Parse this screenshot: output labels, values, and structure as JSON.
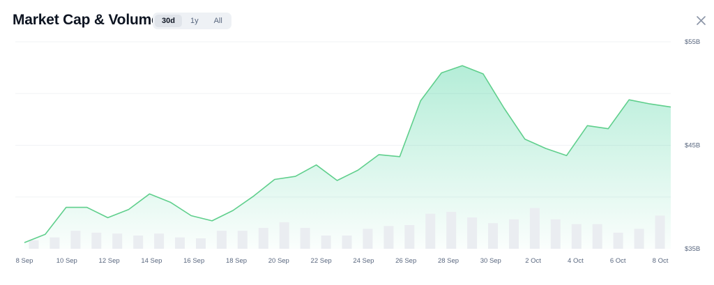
{
  "header": {
    "title": "Market Cap & Volume",
    "tabs": [
      {
        "label": "30d",
        "active": true
      },
      {
        "label": "1y",
        "active": false
      },
      {
        "label": "All",
        "active": false
      }
    ]
  },
  "colors": {
    "line": "#5fcf8c",
    "fill": "#16c784",
    "volume": "#eaedf1",
    "grid": "#f1f3f6"
  },
  "chart_data": {
    "type": "line",
    "title": "Market Cap & Volume",
    "x_tick_labels": [
      "8 Sep",
      "10 Sep",
      "12 Sep",
      "14 Sep",
      "16 Sep",
      "18 Sep",
      "20 Sep",
      "22 Sep",
      "24 Sep",
      "26 Sep",
      "28 Sep",
      "30 Sep",
      "2 Oct",
      "4 Oct",
      "6 Oct",
      "8 Oct"
    ],
    "y_tick_labels": [
      "$55B",
      "$45B",
      "$35B"
    ],
    "ylim": [
      35,
      55
    ],
    "grid": true,
    "series": [
      {
        "type": "area",
        "values": [
          35.6,
          36.4,
          39.0,
          39.0,
          38.0,
          38.8,
          40.3,
          39.5,
          38.2,
          37.7,
          38.7,
          40.1,
          41.7,
          42.0,
          43.1,
          41.6,
          42.6,
          44.1,
          43.9,
          49.3,
          52.0,
          52.7,
          51.9,
          48.6,
          45.6,
          44.7,
          44.0,
          46.9,
          46.6,
          49.4,
          49.0,
          48.7
        ]
      },
      {
        "type": "bar",
        "values": [
          0.9,
          1.2,
          1.9,
          1.7,
          1.6,
          1.4,
          1.6,
          1.2,
          1.1,
          1.9,
          1.9,
          2.2,
          2.8,
          2.2,
          1.4,
          1.4,
          2.1,
          2.4,
          2.5,
          3.7,
          3.9,
          3.3,
          2.7,
          3.1,
          4.3,
          3.1,
          2.6,
          2.6,
          1.7,
          2.1,
          3.5
        ]
      }
    ]
  }
}
